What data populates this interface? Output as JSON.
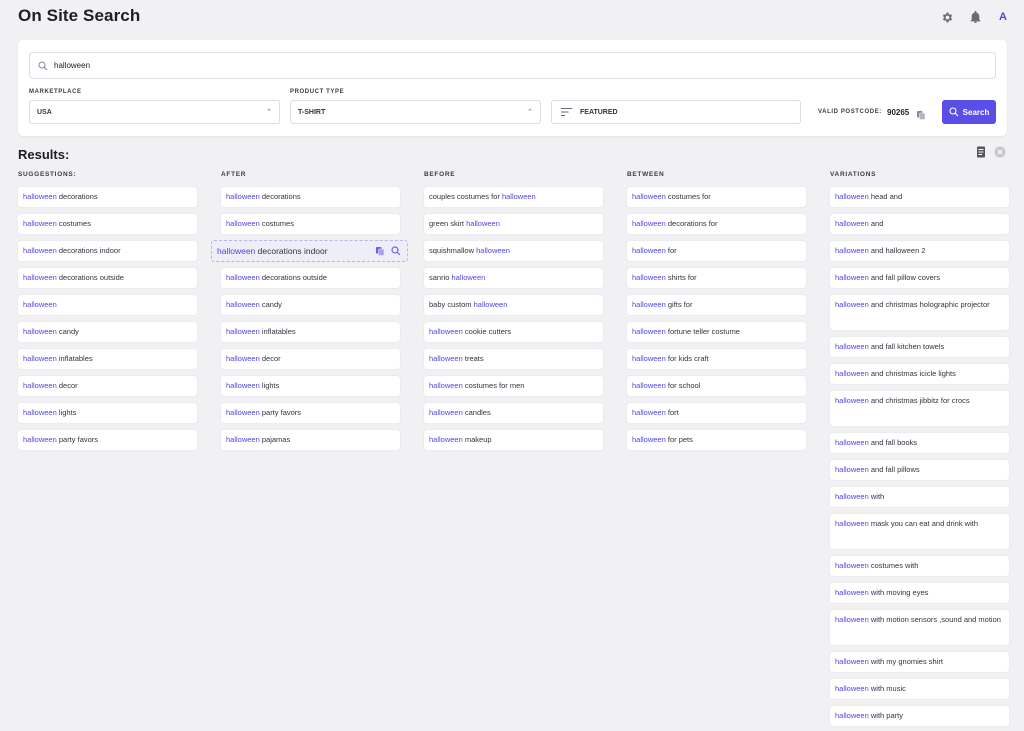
{
  "header": {
    "title": "On Site Search",
    "avatar_letter": "A"
  },
  "search": {
    "value": "halloween",
    "placeholder": ""
  },
  "filters": {
    "marketplace_label": "MARKETPLACE",
    "marketplace_value": "USA",
    "product_type_label": "PRODUCT TYPE",
    "product_type_value": "T-SHIRT",
    "sort_value": "FEATURED",
    "postcode_label": "VALID POSTCODE:",
    "postcode_value": "90265",
    "search_button": "Search"
  },
  "results": {
    "title": "Results:",
    "keyword": "halloween",
    "hover_item": {
      "kw": "halloween",
      "rest": " decorations indoor"
    },
    "columns": [
      {
        "label": "SUGGESTIONS:",
        "items": [
          {
            "pre": "",
            "kw": "halloween",
            "post": " decorations"
          },
          {
            "pre": "",
            "kw": "halloween",
            "post": " costumes"
          },
          {
            "pre": "",
            "kw": "halloween",
            "post": " decorations indoor"
          },
          {
            "pre": "",
            "kw": "halloween",
            "post": " decorations outside"
          },
          {
            "pre": "",
            "kw": "halloween",
            "post": ""
          },
          {
            "pre": "",
            "kw": "halloween",
            "post": " candy"
          },
          {
            "pre": "",
            "kw": "halloween",
            "post": " inflatables"
          },
          {
            "pre": "",
            "kw": "halloween",
            "post": " decor"
          },
          {
            "pre": "",
            "kw": "halloween",
            "post": " lights"
          },
          {
            "pre": "",
            "kw": "halloween",
            "post": " party favors"
          }
        ]
      },
      {
        "label": "AFTER",
        "items": [
          {
            "pre": "",
            "kw": "halloween",
            "post": " decorations"
          },
          {
            "pre": "",
            "kw": "halloween",
            "post": " costumes"
          },
          {
            "pre": "",
            "kw": "halloween",
            "post": " decorations indoor"
          },
          {
            "pre": "",
            "kw": "halloween",
            "post": " decorations outside"
          },
          {
            "pre": "",
            "kw": "halloween",
            "post": " candy"
          },
          {
            "pre": "",
            "kw": "halloween",
            "post": " inflatables"
          },
          {
            "pre": "",
            "kw": "halloween",
            "post": " decor"
          },
          {
            "pre": "",
            "kw": "halloween",
            "post": " lights"
          },
          {
            "pre": "",
            "kw": "halloween",
            "post": " party favors"
          },
          {
            "pre": "",
            "kw": "halloween",
            "post": " pajamas"
          }
        ]
      },
      {
        "label": "BEFORE",
        "items": [
          {
            "pre": "couples costumes for ",
            "kw": "halloween",
            "post": ""
          },
          {
            "pre": "green skirt ",
            "kw": "halloween",
            "post": ""
          },
          {
            "pre": "squishmallow ",
            "kw": "halloween",
            "post": ""
          },
          {
            "pre": "sanrio ",
            "kw": "halloween",
            "post": ""
          },
          {
            "pre": "baby custom ",
            "kw": "halloween",
            "post": ""
          },
          {
            "pre": "",
            "kw": "halloween",
            "post": " cookie cutters"
          },
          {
            "pre": "",
            "kw": "halloween",
            "post": " treats"
          },
          {
            "pre": "",
            "kw": "halloween",
            "post": " costumes for men"
          },
          {
            "pre": "",
            "kw": "halloween",
            "post": " candles"
          },
          {
            "pre": "",
            "kw": "halloween",
            "post": " makeup"
          }
        ]
      },
      {
        "label": "BETWEEN",
        "items": [
          {
            "pre": "",
            "kw": "halloween",
            "post": " costumes for"
          },
          {
            "pre": "",
            "kw": "halloween",
            "post": " decorations for"
          },
          {
            "pre": "",
            "kw": "halloween",
            "post": " for"
          },
          {
            "pre": "",
            "kw": "halloween",
            "post": " shirts for"
          },
          {
            "pre": "",
            "kw": "halloween",
            "post": " gifts for"
          },
          {
            "pre": "",
            "kw": "halloween",
            "post": " fortune teller costume"
          },
          {
            "pre": "",
            "kw": "halloween",
            "post": " for kids craft"
          },
          {
            "pre": "",
            "kw": "halloween",
            "post": " for school"
          },
          {
            "pre": "",
            "kw": "halloween",
            "post": " fort"
          },
          {
            "pre": "",
            "kw": "halloween",
            "post": " for pets"
          }
        ]
      },
      {
        "label": "VARIATIONS",
        "items": [
          {
            "pre": "",
            "kw": "halloween",
            "post": " head and"
          },
          {
            "pre": "",
            "kw": "halloween",
            "post": " and"
          },
          {
            "pre": "",
            "kw": "halloween",
            "post": " and halloween 2"
          },
          {
            "pre": "",
            "kw": "halloween",
            "post": " and fall pillow covers"
          },
          {
            "pre": "",
            "kw": "halloween",
            "post": " and christmas holographic projector",
            "lines": 2
          },
          {
            "pre": "",
            "kw": "halloween",
            "post": " and fall kitchen towels"
          },
          {
            "pre": "",
            "kw": "halloween",
            "post": " and christmas icicle lights"
          },
          {
            "pre": "",
            "kw": "halloween",
            "post": " and christmas jibbitz for crocs",
            "lines": 2
          },
          {
            "pre": "",
            "kw": "halloween",
            "post": " and fall books"
          },
          {
            "pre": "",
            "kw": "halloween",
            "post": " and fall pillows"
          },
          {
            "pre": "",
            "kw": "halloween",
            "post": " with"
          },
          {
            "pre": "",
            "kw": "halloween",
            "post": " mask you can eat and drink with",
            "lines": 2
          },
          {
            "pre": "",
            "kw": "halloween",
            "post": " costumes with"
          },
          {
            "pre": "",
            "kw": "halloween",
            "post": " with moving eyes"
          },
          {
            "pre": "",
            "kw": "halloween",
            "post": " with motion sensors ,sound and motion",
            "lines": 2
          },
          {
            "pre": "",
            "kw": "halloween",
            "post": " with my gnomies shirt"
          },
          {
            "pre": "",
            "kw": "halloween",
            "post": " with music"
          },
          {
            "pre": "",
            "kw": "halloween",
            "post": " with party"
          }
        ]
      }
    ]
  },
  "colors": {
    "accent": "#5b4ee8",
    "keyword": "#4f46e5",
    "background": "#f1f1f4"
  },
  "icons": [
    "settings-gear-icon",
    "bell-icon",
    "search-icon",
    "sort-lines-icon",
    "copy-icon",
    "document-icon",
    "close-circle-icon"
  ]
}
